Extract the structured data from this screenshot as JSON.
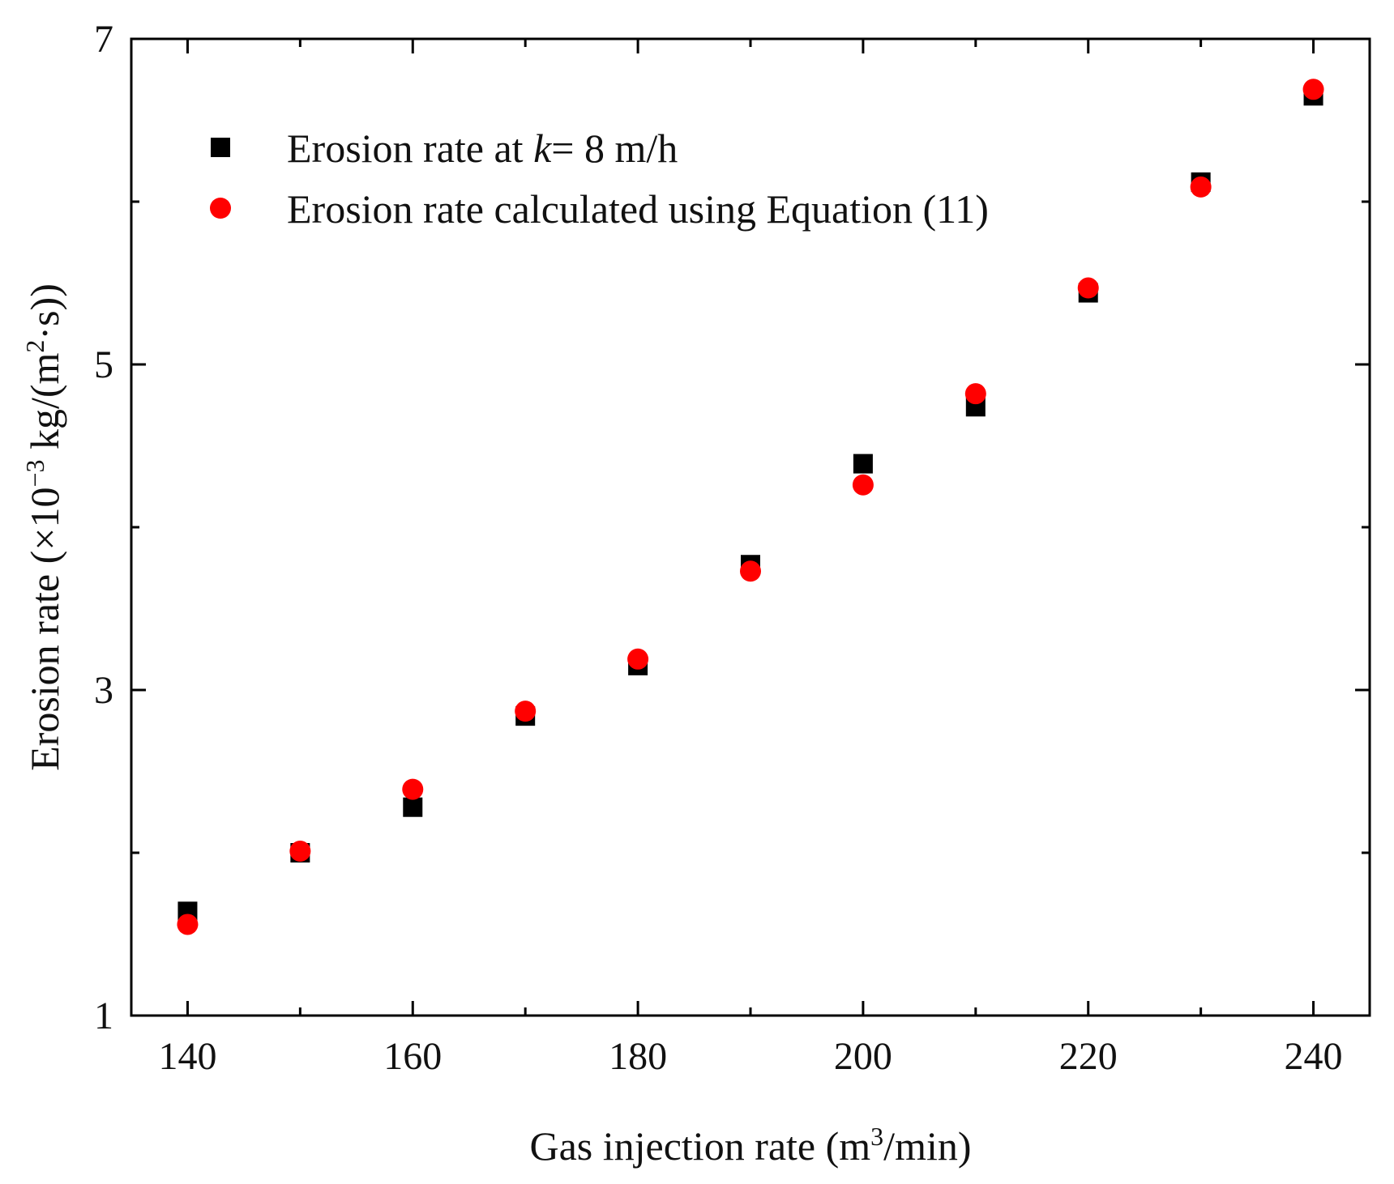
{
  "chart_data": {
    "type": "scatter",
    "title": "",
    "xlabel": "Gas injection rate (m³/min)",
    "xlabel_parts": {
      "before": "Gas injection rate (m",
      "sup": "3",
      "after": "/min)"
    },
    "ylabel": "Erosion rate (×10⁻³ kg/(m²·s))",
    "ylabel_parts": {
      "before": "Erosion rate (×10",
      "sup1": "−3",
      "middle": " kg/(m",
      "sup2": "2",
      "after": "·s))"
    },
    "xlim": [
      135,
      245
    ],
    "ylim": [
      1,
      7
    ],
    "xticks": [
      140,
      160,
      180,
      200,
      220,
      240
    ],
    "xticks_minor": [
      150,
      170,
      190,
      210,
      230
    ],
    "yticks": [
      1,
      3,
      5,
      7
    ],
    "yticks_minor": [
      2,
      4,
      6
    ],
    "grid": false,
    "legend_position": "top-left",
    "x": [
      140,
      150,
      160,
      170,
      180,
      190,
      200,
      210,
      220,
      230,
      240
    ],
    "series": [
      {
        "name": "Erosion rate at k= 8 m/h",
        "legend_parts": {
          "before": "Erosion rate at ",
          "italic": "k",
          "after": "= 8 m/h"
        },
        "marker": "square",
        "color": "#000000",
        "values": [
          1.64,
          2.0,
          2.28,
          2.84,
          3.15,
          3.77,
          4.39,
          4.74,
          5.44,
          6.12,
          6.65
        ]
      },
      {
        "name": "Erosion rate calculated using Equation (11)",
        "legend_parts": {
          "before": "Erosion rate calculated using Equation (11)",
          "italic": "",
          "after": ""
        },
        "marker": "circle",
        "color": "#ff0000",
        "values": [
          1.56,
          2.01,
          2.39,
          2.87,
          3.19,
          3.73,
          4.26,
          4.82,
          5.47,
          6.09,
          6.69
        ]
      }
    ]
  }
}
